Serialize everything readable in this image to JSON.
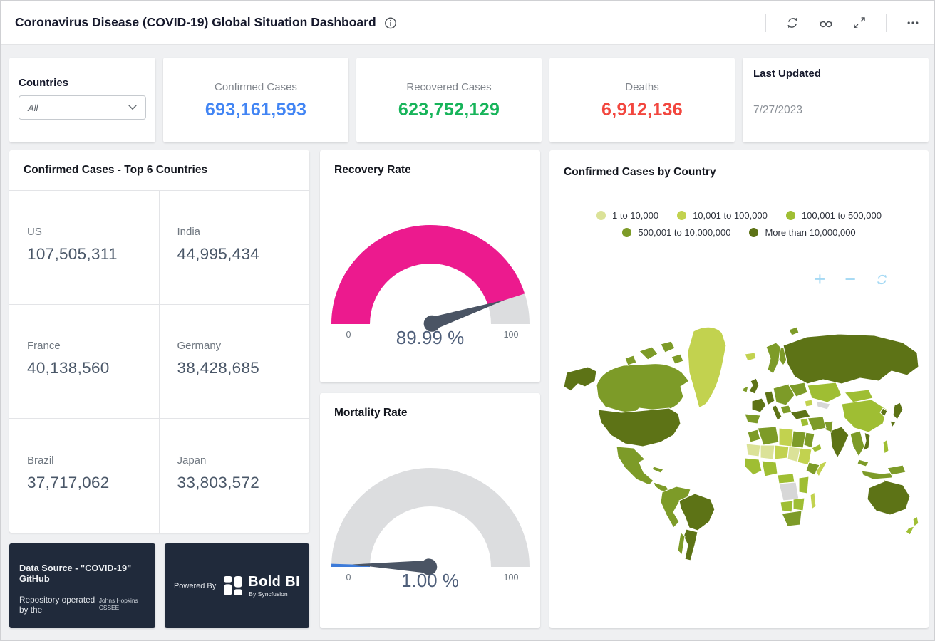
{
  "header": {
    "title": "Coronavirus Disease (COVID-19) Global Situation Dashboard",
    "icons": [
      "info-icon",
      "refresh-icon",
      "preview-icon",
      "fullscreen-icon",
      "more-icon"
    ]
  },
  "filters": {
    "label": "Countries",
    "value": "All"
  },
  "kpis": [
    {
      "label": "Confirmed Cases",
      "value": "693,161,593",
      "color": "#4285f4"
    },
    {
      "label": "Recovered Cases",
      "value": "623,752,129",
      "color": "#17b45a"
    },
    {
      "label": "Deaths",
      "value": "6,912,136",
      "color": "#f2463e"
    }
  ],
  "last_updated": {
    "label": "Last Updated",
    "value": "7/27/2023"
  },
  "top6": {
    "title": "Confirmed Cases - Top 6 Countries",
    "rows": [
      {
        "country": "US",
        "value": "107,505,311"
      },
      {
        "country": "India",
        "value": "44,995,434"
      },
      {
        "country": "France",
        "value": "40,138,560"
      },
      {
        "country": "Germany",
        "value": "38,428,685"
      },
      {
        "country": "Brazil",
        "value": "37,717,062"
      },
      {
        "country": "Japan",
        "value": "33,803,572"
      }
    ]
  },
  "gauges": [
    {
      "title": "Recovery Rate",
      "value": 89.99,
      "display": "89.99 %",
      "min_label": "0",
      "max_label": "100",
      "fill_color": "#ec1a8e",
      "track_color": "#dcdddf",
      "needle_color": "#4a5464"
    },
    {
      "title": "Mortality Rate",
      "value": 1.0,
      "display": "1.00 %",
      "min_label": "0",
      "max_label": "100",
      "fill_color": "#3d7bd9",
      "track_color": "#dcdddf",
      "needle_color": "#4a5464"
    }
  ],
  "map": {
    "title": "Confirmed Cases by Country",
    "legend": [
      {
        "label": "1 to 10,000",
        "color": "#dbe298"
      },
      {
        "label": "10,001 to 100,000",
        "color": "#c2d24f"
      },
      {
        "label": "100,001 to 500,000",
        "color": "#9fbe33"
      },
      {
        "label": "500,001 to 10,000,000",
        "color": "#7d9b28"
      },
      {
        "label": "More than 10,000,000",
        "color": "#5d7316"
      }
    ],
    "palette": {
      "c1": "#dbe298",
      "c2": "#c2d24f",
      "c3": "#9fbe33",
      "c4": "#7d9b28",
      "c5": "#5d7316",
      "nodata": "#d7d7d7"
    },
    "controls": {
      "zoom_in": "+",
      "zoom_out": "−"
    }
  },
  "footer": {
    "source_line1": "Data Source - \"COVID-19\" GitHub",
    "source_line2": "Repository operated by the",
    "source_line2_small": "Johns Hopkins CSSEE",
    "powered_by": "Powered By",
    "brand": "Bold BI",
    "brand_sub": "By Syncfusion"
  },
  "chart_data": [
    {
      "type": "table",
      "title": "Confirmed Cases - Top 6 Countries",
      "categories": [
        "US",
        "India",
        "France",
        "Germany",
        "Brazil",
        "Japan"
      ],
      "values": [
        107505311,
        44995434,
        40138560,
        38428685,
        37717062,
        33803572
      ]
    },
    {
      "type": "gauge",
      "title": "Recovery Rate",
      "value": 89.99,
      "min": 0,
      "max": 100,
      "unit": "%"
    },
    {
      "type": "gauge",
      "title": "Mortality Rate",
      "value": 1.0,
      "min": 0,
      "max": 100,
      "unit": "%"
    },
    {
      "type": "choropleth-map",
      "title": "Confirmed Cases by Country",
      "buckets": [
        "1 to 10,000",
        "10,001 to 100,000",
        "100,001 to 500,000",
        "500,001 to 10,000,000",
        "More than 10,000,000"
      ],
      "legend_position": "top-center"
    }
  ]
}
